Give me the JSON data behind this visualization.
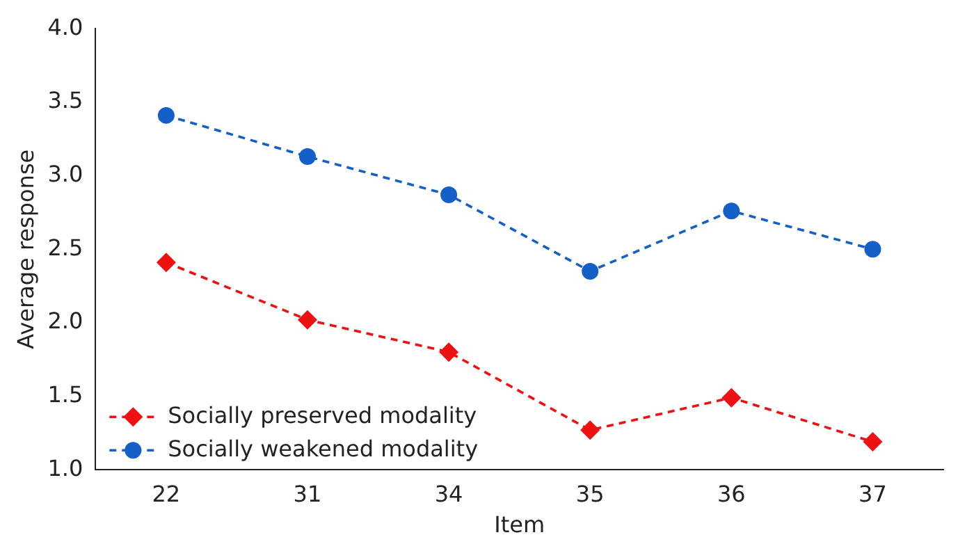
{
  "chart_data": {
    "type": "line",
    "xlabel": "Item",
    "ylabel": "Average response",
    "categories": [
      "22",
      "31",
      "34",
      "35",
      "36",
      "37"
    ],
    "series": [
      {
        "name": "Socially preserved modality",
        "color": "#ee1111",
        "marker": "diamond",
        "values": [
          2.41,
          2.02,
          1.8,
          1.27,
          1.49,
          1.19
        ]
      },
      {
        "name": "Socially weakened modality",
        "color": "#1560c8",
        "marker": "circle",
        "values": [
          3.41,
          3.13,
          2.87,
          2.35,
          2.76,
          2.5
        ]
      }
    ],
    "ylim": [
      1.0,
      4.0
    ],
    "yticks": [
      {
        "value": 1,
        "label": "1.0"
      },
      {
        "value": 1.5,
        "label": "1.5"
      },
      {
        "value": 2,
        "label": "2.0"
      },
      {
        "value": 2.5,
        "label": "2.5"
      },
      {
        "value": 3,
        "label": "3.0"
      },
      {
        "value": 3.5,
        "label": "3.5"
      },
      {
        "value": 4,
        "label": "4.0"
      }
    ],
    "grid": false,
    "legend": "bottom left",
    "line_style": "dashed"
  }
}
